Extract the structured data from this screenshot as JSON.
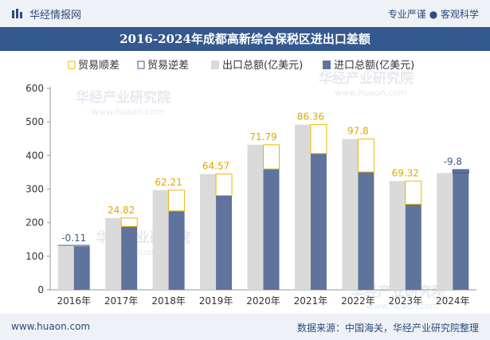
{
  "header": {
    "brand": "华经情报网",
    "tagline": "专业严谨 ● 客观科学"
  },
  "footer": {
    "website": "www.huaon.com",
    "source": "数据来源：中国海关，华经产业研究院整理"
  },
  "watermark": "华经产业研究院",
  "watermark_url": "www.huaon.com",
  "colors": {
    "export": "#dadada",
    "import": "#5f739c",
    "surplus": "#f0b800",
    "deficit": "#3e5a8a",
    "title_bg": "#35588e"
  },
  "chart_data": {
    "type": "bar",
    "title": "2016-2024年成都高新综合保税区进出口差额",
    "categories": [
      "2016年",
      "2017年",
      "2018年",
      "2019年",
      "2020年",
      "2021年",
      "2022年",
      "2023年",
      "2024年"
    ],
    "ylim": [
      0,
      600
    ],
    "yticks": [
      0,
      100,
      200,
      300,
      400,
      500,
      600
    ],
    "legend_position": "top",
    "legend": [
      "贸易顺差",
      "贸易逆差",
      "出口总额(亿美元)",
      "进口总额(亿美元)"
    ],
    "series": [
      {
        "name": "出口总额(亿美元)",
        "values": [
          130,
          214,
          297,
          345,
          432,
          492,
          449,
          324,
          348
        ]
      },
      {
        "name": "进口总额(亿美元)",
        "values": [
          130,
          189,
          235,
          281,
          360,
          406,
          351,
          255,
          358
        ]
      }
    ],
    "balance": [
      -0.11,
      24.82,
      62.21,
      64.57,
      71.79,
      86.36,
      97.8,
      69.32,
      -9.8
    ],
    "balance_labels": [
      "-0.11",
      "24.82",
      "62.21",
      "64.57",
      "71.79",
      "86.36",
      "97.8",
      "69.32",
      "-9.8"
    ]
  }
}
